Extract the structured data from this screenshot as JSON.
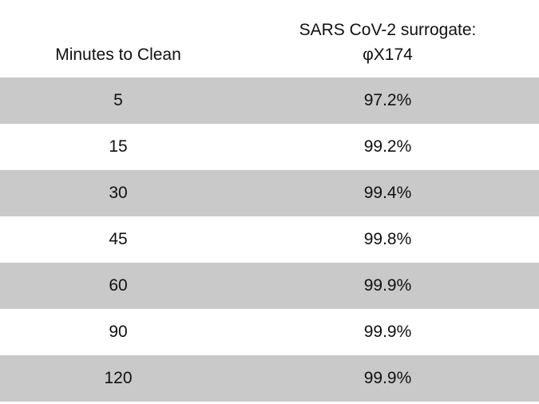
{
  "table": {
    "header": [
      "Minutes to Clean",
      [
        "SARS CoV-2 surrogate:",
        "φX174"
      ]
    ],
    "rows": [
      [
        "5",
        "97.2%"
      ],
      [
        "15",
        "99.2%"
      ],
      [
        "30",
        "99.4%"
      ],
      [
        "45",
        "99.8%"
      ],
      [
        "60",
        "99.9%"
      ],
      [
        "90",
        "99.9%"
      ],
      [
        "120",
        "99.9%"
      ]
    ]
  }
}
